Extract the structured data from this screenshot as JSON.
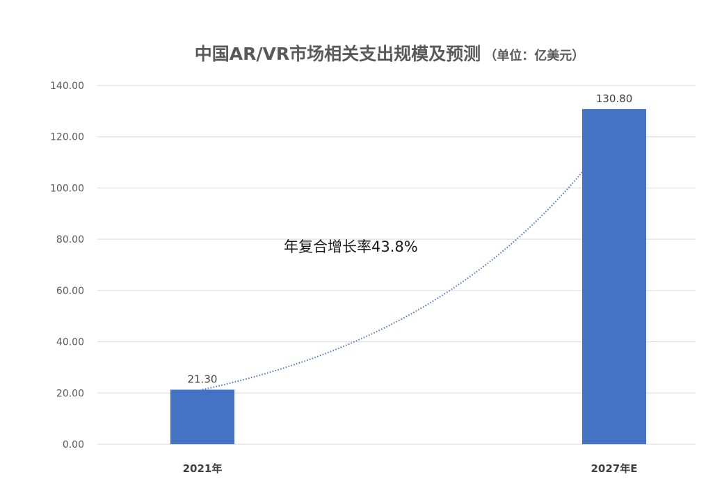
{
  "chart_data": {
    "type": "bar",
    "title": "中国AR/VR市场相关支出规模及预测",
    "title_unit": "（单位：亿美元）",
    "categories": [
      "2021年",
      "2027年E"
    ],
    "values": [
      21.3,
      130.8
    ],
    "value_labels": [
      "21.30",
      "130.80"
    ],
    "ylim": [
      0,
      140
    ],
    "yticks": [
      "0.00",
      "20.00",
      "40.00",
      "60.00",
      "80.00",
      "100.00",
      "120.00",
      "140.00"
    ],
    "grid": true,
    "annotation": "年复合增长率43.8%",
    "trendline": "exponential",
    "colors": {
      "bar": "#4472C4",
      "trend": "#4472C4",
      "grid": "#D9D9D9"
    }
  }
}
